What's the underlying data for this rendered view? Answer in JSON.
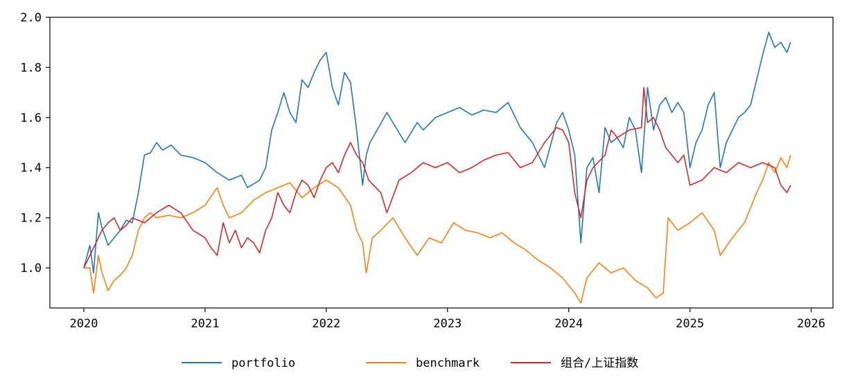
{
  "chart_data": {
    "type": "line",
    "title": "",
    "xlabel": "",
    "ylabel": "",
    "xlim": [
      2019.72,
      2026.18
    ],
    "ylim": [
      0.84,
      2.0
    ],
    "xticks": [
      2020,
      2021,
      2022,
      2023,
      2024,
      2025,
      2026
    ],
    "xtick_labels": [
      "2020",
      "2021",
      "2022",
      "2023",
      "2024",
      "2025",
      "2026"
    ],
    "yticks": [
      1.0,
      1.2,
      1.4,
      1.6,
      1.8,
      2.0
    ],
    "ytick_labels": [
      "1.0",
      "1.2",
      "1.4",
      "1.6",
      "1.8",
      "2.0"
    ],
    "grid": false,
    "legend_position": "bottom-center",
    "series": [
      {
        "name": "portfolio",
        "color": "#1f77b4",
        "x": [
          2020.0,
          2020.05,
          2020.08,
          2020.12,
          2020.15,
          2020.2,
          2020.25,
          2020.3,
          2020.35,
          2020.4,
          2020.45,
          2020.5,
          2020.55,
          2020.6,
          2020.65,
          2020.72,
          2020.8,
          2020.9,
          2021.0,
          2021.1,
          2021.2,
          2021.3,
          2021.35,
          2021.45,
          2021.5,
          2021.55,
          2021.6,
          2021.65,
          2021.7,
          2021.75,
          2021.8,
          2021.85,
          2021.9,
          2021.95,
          2022.0,
          2022.05,
          2022.1,
          2022.15,
          2022.2,
          2022.25,
          2022.3,
          2022.33,
          2022.36,
          2022.42,
          2022.5,
          2022.55,
          2022.65,
          2022.75,
          2022.8,
          2022.9,
          2023.0,
          2023.1,
          2023.2,
          2023.3,
          2023.4,
          2023.5,
          2023.6,
          2023.7,
          2023.8,
          2023.9,
          2023.95,
          2024.0,
          2024.05,
          2024.1,
          2024.15,
          2024.2,
          2024.25,
          2024.3,
          2024.35,
          2024.4,
          2024.45,
          2024.5,
          2024.55,
          2024.6,
          2024.65,
          2024.7,
          2024.75,
          2024.8,
          2024.85,
          2024.9,
          2024.95,
          2025.0,
          2025.05,
          2025.1,
          2025.15,
          2025.2,
          2025.25,
          2025.3,
          2025.35,
          2025.4,
          2025.45,
          2025.5,
          2025.55,
          2025.6,
          2025.65,
          2025.7,
          2025.75,
          2025.8,
          2025.83
        ],
        "y": [
          1.0,
          1.09,
          0.98,
          1.22,
          1.16,
          1.09,
          1.12,
          1.15,
          1.19,
          1.18,
          1.3,
          1.45,
          1.46,
          1.5,
          1.47,
          1.49,
          1.45,
          1.44,
          1.42,
          1.38,
          1.35,
          1.37,
          1.32,
          1.35,
          1.4,
          1.55,
          1.62,
          1.7,
          1.62,
          1.58,
          1.75,
          1.72,
          1.78,
          1.83,
          1.86,
          1.72,
          1.65,
          1.78,
          1.74,
          1.55,
          1.33,
          1.45,
          1.5,
          1.55,
          1.62,
          1.58,
          1.5,
          1.58,
          1.55,
          1.6,
          1.62,
          1.64,
          1.61,
          1.63,
          1.62,
          1.66,
          1.56,
          1.5,
          1.4,
          1.58,
          1.62,
          1.55,
          1.45,
          1.1,
          1.4,
          1.44,
          1.3,
          1.56,
          1.5,
          1.52,
          1.48,
          1.6,
          1.55,
          1.38,
          1.72,
          1.55,
          1.65,
          1.68,
          1.62,
          1.66,
          1.62,
          1.4,
          1.5,
          1.55,
          1.65,
          1.7,
          1.4,
          1.5,
          1.55,
          1.6,
          1.62,
          1.65,
          1.75,
          1.85,
          1.94,
          1.88,
          1.9,
          1.86,
          1.9
        ]
      },
      {
        "name": "benchmark",
        "color": "#ff7f0e",
        "x": [
          2020.0,
          2020.05,
          2020.08,
          2020.12,
          2020.15,
          2020.2,
          2020.25,
          2020.3,
          2020.35,
          2020.4,
          2020.45,
          2020.5,
          2020.55,
          2020.6,
          2020.7,
          2020.8,
          2020.9,
          2021.0,
          2021.1,
          2021.15,
          2021.2,
          2021.3,
          2021.4,
          2021.5,
          2021.6,
          2021.7,
          2021.8,
          2021.9,
          2022.0,
          2022.1,
          2022.2,
          2022.25,
          2022.3,
          2022.33,
          2022.38,
          2022.45,
          2022.55,
          2022.65,
          2022.75,
          2022.85,
          2022.95,
          2023.05,
          2023.15,
          2023.25,
          2023.35,
          2023.45,
          2023.55,
          2023.65,
          2023.75,
          2023.85,
          2023.95,
          2024.05,
          2024.1,
          2024.15,
          2024.25,
          2024.35,
          2024.45,
          2024.55,
          2024.65,
          2024.72,
          2024.78,
          2024.82,
          2024.9,
          2025.0,
          2025.1,
          2025.2,
          2025.25,
          2025.35,
          2025.45,
          2025.55,
          2025.6,
          2025.65,
          2025.7,
          2025.75,
          2025.8,
          2025.83
        ],
        "y": [
          1.0,
          1.0,
          0.9,
          1.05,
          0.98,
          0.91,
          0.95,
          0.97,
          1.0,
          1.05,
          1.15,
          1.2,
          1.22,
          1.2,
          1.21,
          1.2,
          1.22,
          1.25,
          1.32,
          1.25,
          1.2,
          1.22,
          1.27,
          1.3,
          1.32,
          1.34,
          1.28,
          1.32,
          1.35,
          1.32,
          1.25,
          1.15,
          1.1,
          0.98,
          1.12,
          1.15,
          1.2,
          1.12,
          1.05,
          1.12,
          1.1,
          1.18,
          1.15,
          1.14,
          1.12,
          1.14,
          1.1,
          1.07,
          1.03,
          1.0,
          0.96,
          0.9,
          0.86,
          0.96,
          1.02,
          0.98,
          1.0,
          0.95,
          0.92,
          0.88,
          0.9,
          1.2,
          1.15,
          1.18,
          1.22,
          1.15,
          1.05,
          1.12,
          1.18,
          1.3,
          1.35,
          1.42,
          1.38,
          1.44,
          1.4,
          1.45
        ]
      },
      {
        "name": "组合/上证指数",
        "color": "#d62728",
        "x": [
          2020.0,
          2020.05,
          2020.08,
          2020.12,
          2020.15,
          2020.2,
          2020.25,
          2020.3,
          2020.35,
          2020.4,
          2020.5,
          2020.6,
          2020.7,
          2020.8,
          2020.9,
          2021.0,
          2021.05,
          2021.1,
          2021.15,
          2021.2,
          2021.25,
          2021.3,
          2021.35,
          2021.4,
          2021.45,
          2021.5,
          2021.55,
          2021.6,
          2021.65,
          2021.7,
          2021.75,
          2021.8,
          2021.85,
          2021.9,
          2021.95,
          2022.0,
          2022.05,
          2022.1,
          2022.15,
          2022.2,
          2022.25,
          2022.3,
          2022.35,
          2022.45,
          2022.5,
          2022.6,
          2022.7,
          2022.8,
          2022.9,
          2023.0,
          2023.1,
          2023.2,
          2023.3,
          2023.4,
          2023.5,
          2023.6,
          2023.7,
          2023.8,
          2023.9,
          2023.95,
          2024.0,
          2024.05,
          2024.1,
          2024.15,
          2024.2,
          2024.3,
          2024.35,
          2024.4,
          2024.5,
          2024.6,
          2024.62,
          2024.65,
          2024.7,
          2024.75,
          2024.8,
          2024.85,
          2024.9,
          2024.95,
          2025.0,
          2025.1,
          2025.2,
          2025.3,
          2025.4,
          2025.5,
          2025.6,
          2025.7,
          2025.75,
          2025.8,
          2025.83
        ],
        "y": [
          1.0,
          1.05,
          1.08,
          1.12,
          1.15,
          1.18,
          1.2,
          1.15,
          1.17,
          1.2,
          1.18,
          1.22,
          1.25,
          1.22,
          1.15,
          1.12,
          1.08,
          1.05,
          1.18,
          1.1,
          1.15,
          1.08,
          1.12,
          1.1,
          1.06,
          1.15,
          1.2,
          1.3,
          1.25,
          1.22,
          1.3,
          1.35,
          1.33,
          1.28,
          1.35,
          1.4,
          1.42,
          1.38,
          1.45,
          1.5,
          1.45,
          1.42,
          1.35,
          1.3,
          1.22,
          1.35,
          1.38,
          1.42,
          1.4,
          1.42,
          1.38,
          1.4,
          1.43,
          1.45,
          1.46,
          1.4,
          1.42,
          1.5,
          1.56,
          1.55,
          1.5,
          1.3,
          1.2,
          1.35,
          1.4,
          1.45,
          1.55,
          1.52,
          1.55,
          1.56,
          1.72,
          1.58,
          1.6,
          1.55,
          1.48,
          1.45,
          1.42,
          1.45,
          1.33,
          1.35,
          1.4,
          1.38,
          1.42,
          1.4,
          1.42,
          1.4,
          1.33,
          1.3,
          1.33
        ]
      }
    ]
  }
}
